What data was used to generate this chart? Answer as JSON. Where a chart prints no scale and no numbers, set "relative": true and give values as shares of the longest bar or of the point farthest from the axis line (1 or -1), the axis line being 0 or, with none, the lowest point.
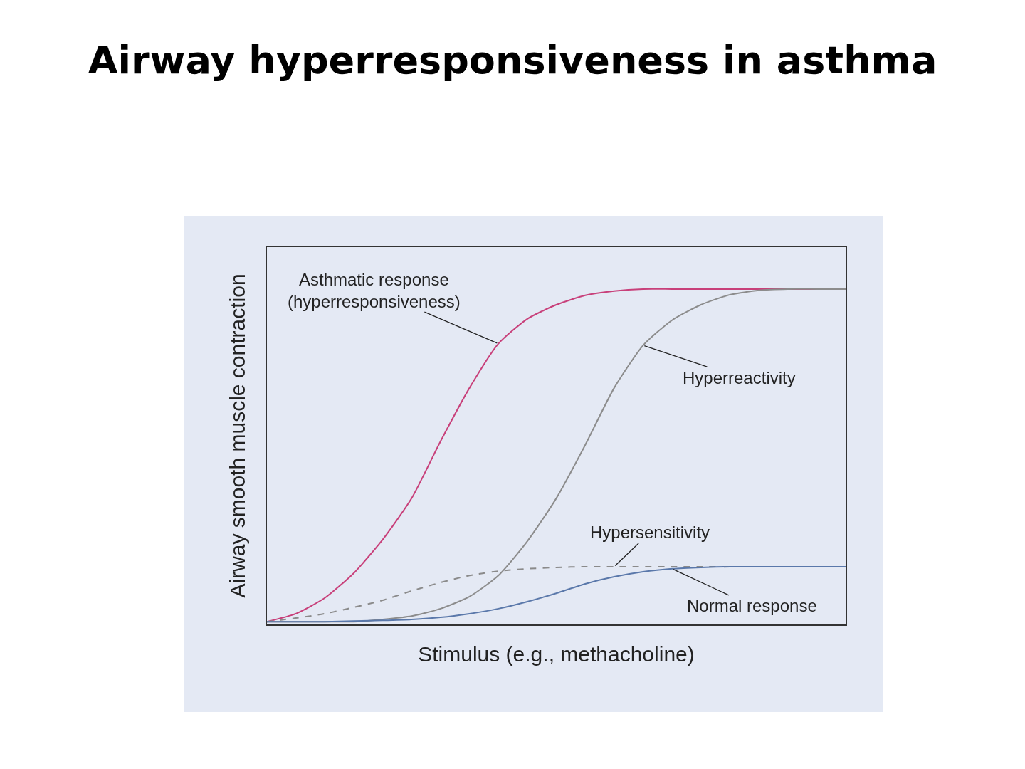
{
  "chart_data": {
    "type": "line",
    "title": "Airway hyperresponsiveness in asthma",
    "xlabel": "Stimulus (e.g., methacholine)",
    "ylabel": "Airway smooth muscle contraction",
    "relative": true,
    "categories": [
      null,
      null,
      null,
      null,
      null,
      null,
      null,
      null,
      null,
      null,
      null,
      null,
      null,
      null,
      null,
      null,
      null,
      null,
      null,
      null,
      null
    ],
    "series": [
      {
        "name": "Asthmatic response\n(hyperresponsiveness)",
        "color": "#c8407a",
        "line_style": "solid",
        "values": [
          0.008,
          0.032,
          0.079,
          0.153,
          0.253,
          0.376,
          0.546,
          0.705,
          0.837,
          0.911,
          0.953,
          0.981,
          0.994,
          1,
          1,
          1,
          1,
          1,
          1,
          1,
          1
        ]
      },
      {
        "name": "Hyperreactivity",
        "color": "#8c8c8c",
        "line_style": "solid",
        "values": [
          0.008,
          0.008,
          0.008,
          0.008,
          0.015,
          0.025,
          0.047,
          0.083,
          0.146,
          0.248,
          0.376,
          0.535,
          0.705,
          0.832,
          0.907,
          0.953,
          0.983,
          0.996,
          1,
          1,
          1
        ]
      },
      {
        "name": "Hypersensitivity",
        "color": "#8a8a8a",
        "line_style": "dashed",
        "values": [
          0.008,
          0.019,
          0.032,
          0.051,
          0.072,
          0.1,
          0.125,
          0.146,
          0.159,
          0.166,
          0.17,
          0.172,
          0.172,
          0.172,
          0.172,
          0.172,
          0.172,
          0.172,
          0.172,
          0.172,
          0.172
        ]
      },
      {
        "name": "Normal response",
        "color": "#5a78aa",
        "line_style": "solid",
        "values": [
          0.008,
          0.008,
          0.008,
          0.01,
          0.012,
          0.015,
          0.021,
          0.032,
          0.047,
          0.068,
          0.093,
          0.121,
          0.142,
          0.157,
          0.166,
          0.17,
          0.172,
          0.172,
          0.172,
          0.172,
          0.172
        ]
      }
    ],
    "grid": false,
    "legend": false,
    "marker": "none"
  }
}
